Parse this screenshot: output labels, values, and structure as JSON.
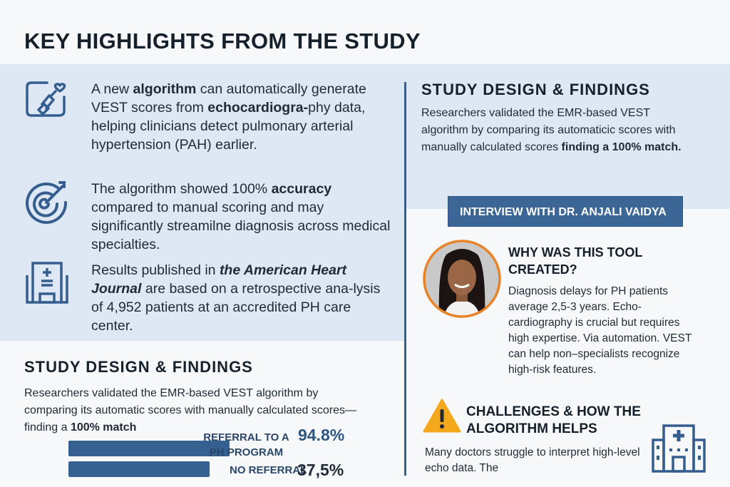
{
  "title": "KEY HIGHLIGHTS FROM THE STUDY",
  "highlights": [
    {
      "icon": "echo-probe-heart-icon",
      "parts": [
        "A new ",
        "algorithm",
        " can automatically generate VEST scores from ",
        "echocardiogra-",
        "phy data, helping clinicians detect pulmonary arterial hypertension (PAH) earlier."
      ]
    },
    {
      "icon": "target-icon",
      "parts": [
        "The algorithm showed 100% ",
        "accuracy",
        " compared to manual scoring and may significantly streamilne diagnosis across medical specialties."
      ]
    },
    {
      "icon": "hospital-icon",
      "parts": [
        "Results published in ",
        "the American Heart Journal",
        " are based on a retrospective ana-lysis of 4,952 patients at an accredited PH care center."
      ]
    }
  ],
  "study_left": {
    "heading": "STUDY DESIGN & FINDINGS",
    "text": "Researchers validated the EMR-based VEST algorithm by comparing its automatic scores with manually calculated scores—finding a ",
    "bold": "100% match"
  },
  "chart_data": {
    "type": "bar",
    "categories": [
      "REFERRAL TO A PH PROGRAM",
      "NO REFERRAL"
    ],
    "values": [
      94.8,
      37.5
    ],
    "value_labels": [
      "94.8%",
      "37,5%"
    ]
  },
  "study_right": {
    "heading": "STUDY DESIGN & FINDINGS",
    "text": "Researchers validated the EMR-based VEST algorithm by comparing its automaticic scores with manually calculated scores ",
    "bold": "finding a 100% match."
  },
  "interview": {
    "banner": "INTERVIEW WITH DR. ANJALI VAIDYA",
    "q1": "WHY WAS THIS TOOL CREATED?",
    "a1": "Diagnosis delays for PH patients average 2,5-3 years. Echo-cardiography is crucial but requires high expertise. Via automation. VEST can help non–specialists recognize high-risk features.",
    "q2": "CHALLENGES & HOW THE ALGORITHM HELPS",
    "a2": "Many doctors struggle to interpret high-level echo data. The"
  },
  "colors": {
    "accent": "#3c6696",
    "panel": "#dde8f4",
    "warning": "#f4a91c",
    "photo_ring": "#e8832a"
  }
}
